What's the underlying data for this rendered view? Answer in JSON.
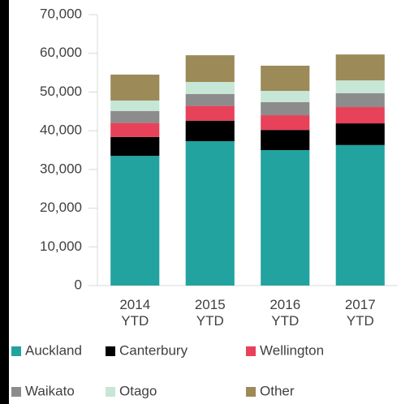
{
  "chart_data": {
    "type": "stacked_bar",
    "categories": [
      "2014 YTD",
      "2015 YTD",
      "2016 YTD",
      "2017 YTD"
    ],
    "series": [
      {
        "name": "Auckland",
        "color": "#22a39f",
        "values": [
          33500,
          37300,
          35000,
          36300
        ]
      },
      {
        "name": "Canterbury",
        "color": "#000000",
        "values": [
          4900,
          5300,
          5200,
          5600
        ]
      },
      {
        "name": "Wellington",
        "color": "#e8415a",
        "values": [
          3600,
          3800,
          3800,
          4200
        ]
      },
      {
        "name": "Waikato",
        "color": "#8c8c8c",
        "values": [
          3100,
          3100,
          3400,
          3600
        ]
      },
      {
        "name": "Otago",
        "color": "#c6e6d6",
        "values": [
          2700,
          3100,
          2900,
          3300
        ]
      },
      {
        "name": "Other",
        "color": "#9c8a59",
        "values": [
          6700,
          6900,
          6500,
          6700
        ]
      }
    ],
    "ylim": [
      0,
      70000
    ],
    "yticks": [
      {
        "value": 0,
        "label": "0"
      },
      {
        "value": 10000,
        "label": "10,000"
      },
      {
        "value": 20000,
        "label": "20,000"
      },
      {
        "value": 30000,
        "label": "30,000"
      },
      {
        "value": 40000,
        "label": "40,000"
      },
      {
        "value": 50000,
        "label": "50,000"
      },
      {
        "value": 60000,
        "label": "60,000"
      },
      {
        "value": 70000,
        "label": "70,000"
      }
    ],
    "legend": "bottom"
  }
}
